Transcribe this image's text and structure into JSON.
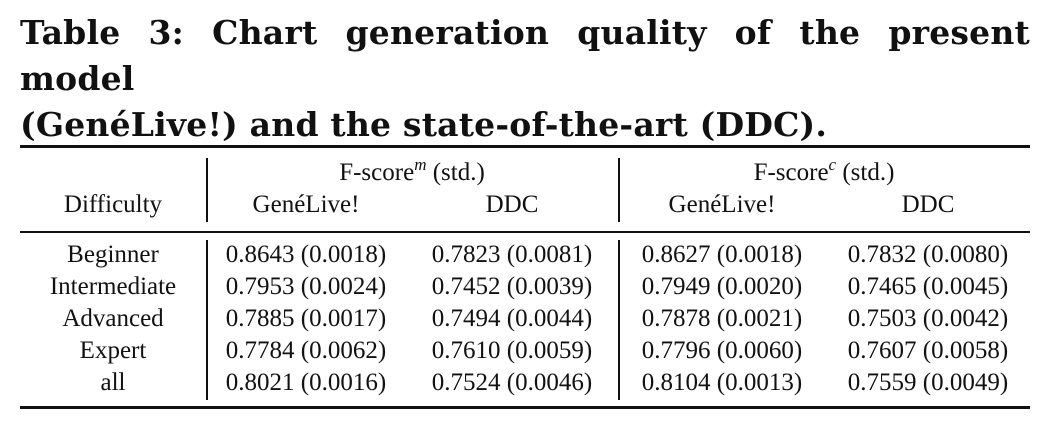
{
  "caption": {
    "line1": "Table 3: Chart generation quality of the present model",
    "line2": "(GenéLive!) and the state-of-the-art (DDC)."
  },
  "table": {
    "row_header": "Difficulty",
    "group1": {
      "base": "F-score",
      "sup": "m",
      "suffix": " (std.)"
    },
    "group2": {
      "base": "F-score",
      "sup": "c",
      "suffix": " (std.)"
    },
    "sub_headers": [
      "GenéLive!",
      "DDC",
      "GenéLive!",
      "DDC"
    ],
    "rows": [
      {
        "difficulty": "Beginner",
        "cells": [
          "0.8643 (0.0018)",
          "0.7823 (0.0081)",
          "0.8627 (0.0018)",
          "0.7832 (0.0080)"
        ]
      },
      {
        "difficulty": "Intermediate",
        "cells": [
          "0.7953 (0.0024)",
          "0.7452 (0.0039)",
          "0.7949 (0.0020)",
          "0.7465 (0.0045)"
        ]
      },
      {
        "difficulty": "Advanced",
        "cells": [
          "0.7885 (0.0017)",
          "0.7494 (0.0044)",
          "0.7878 (0.0021)",
          "0.7503 (0.0042)"
        ]
      },
      {
        "difficulty": "Expert",
        "cells": [
          "0.7784 (0.0062)",
          "0.7610 (0.0059)",
          "0.7796 (0.0060)",
          "0.7607 (0.0058)"
        ]
      },
      {
        "difficulty": "all",
        "cells": [
          "0.8021 (0.0016)",
          "0.7524 (0.0046)",
          "0.8104 (0.0013)",
          "0.7559 (0.0049)"
        ]
      }
    ]
  }
}
